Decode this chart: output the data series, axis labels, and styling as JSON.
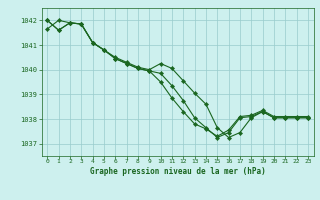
{
  "title": "Graphe pression niveau de la mer (hPa)",
  "bg_color": "#cdf0ee",
  "grid_color": "#99cccc",
  "line_color": "#1a6620",
  "text_color": "#1a6620",
  "xlim": [
    -0.5,
    23.5
  ],
  "ylim": [
    1036.5,
    1042.5
  ],
  "yticks": [
    1037,
    1038,
    1039,
    1040,
    1041,
    1042
  ],
  "xticks": [
    0,
    1,
    2,
    3,
    4,
    5,
    6,
    7,
    8,
    9,
    10,
    11,
    12,
    13,
    14,
    15,
    16,
    17,
    18,
    19,
    20,
    21,
    22,
    23
  ],
  "line1_x": [
    0,
    1,
    2,
    3,
    4,
    5,
    6,
    7,
    8,
    9,
    10,
    11,
    12,
    13,
    14,
    15,
    16,
    17,
    18,
    19,
    20,
    21,
    22,
    23
  ],
  "line1_y": [
    1042.0,
    1041.6,
    1041.9,
    1041.85,
    1041.1,
    1040.8,
    1040.5,
    1040.3,
    1040.1,
    1040.0,
    1040.25,
    1040.05,
    1039.55,
    1039.05,
    1038.6,
    1037.65,
    1037.25,
    1037.45,
    1038.05,
    1038.3,
    1038.05,
    1038.05,
    1038.05,
    1038.05
  ],
  "line2_x": [
    0,
    1,
    2,
    3,
    4,
    5,
    6,
    7,
    8,
    9,
    10,
    11,
    12,
    13,
    14,
    15,
    16,
    17,
    18,
    19,
    20,
    21,
    22,
    23
  ],
  "line2_y": [
    1042.0,
    1041.6,
    1041.9,
    1041.85,
    1041.1,
    1040.8,
    1040.45,
    1040.25,
    1040.05,
    1039.95,
    1039.5,
    1038.85,
    1038.3,
    1037.8,
    1037.6,
    1037.3,
    1037.55,
    1038.1,
    1038.15,
    1038.35,
    1038.1,
    1038.1,
    1038.1,
    1038.1
  ],
  "line3_x": [
    0,
    1,
    2,
    3,
    4,
    5,
    6,
    7,
    8,
    9,
    10,
    11,
    12,
    13,
    14,
    15,
    16,
    17,
    18,
    19,
    20,
    21,
    22,
    23
  ],
  "line3_y": [
    1041.65,
    1042.0,
    1041.9,
    1041.85,
    1041.1,
    1040.8,
    1040.45,
    1040.25,
    1040.05,
    1039.95,
    1039.85,
    1039.35,
    1038.75,
    1038.05,
    1037.65,
    1037.25,
    1037.45,
    1038.05,
    1038.1,
    1038.3,
    1038.05,
    1038.05,
    1038.05,
    1038.05
  ],
  "figwidth": 3.2,
  "figheight": 2.0,
  "dpi": 100
}
